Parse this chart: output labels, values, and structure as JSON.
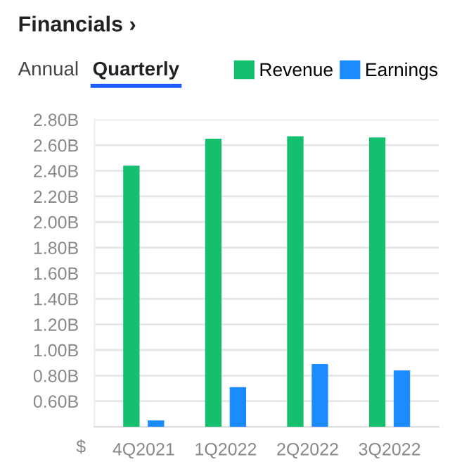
{
  "chart_data": {
    "type": "bar",
    "title": "Financials ›",
    "annotations": [
      "Annual",
      "Quarterly"
    ],
    "ylabel": "$",
    "categories": [
      "4Q2021",
      "1Q2022",
      "2Q2022",
      "3Q2022"
    ],
    "series": [
      {
        "name": "Revenue",
        "color": "#14c06e",
        "values": [
          2.44,
          2.65,
          2.67,
          2.66
        ]
      },
      {
        "name": "Earnings",
        "color": "#1a8cff",
        "values": [
          0.45,
          0.71,
          0.89,
          0.84
        ]
      }
    ],
    "ylim": [
      0.4,
      2.8
    ],
    "yticks": [
      {
        "value": 0.6,
        "label": "0.60B"
      },
      {
        "value": 0.8,
        "label": "0.80B"
      },
      {
        "value": 1.0,
        "label": "1.00B"
      },
      {
        "value": 1.2,
        "label": "1.20B"
      },
      {
        "value": 1.4,
        "label": "1.40B"
      },
      {
        "value": 1.6,
        "label": "1.60B"
      },
      {
        "value": 1.8,
        "label": "1.80B"
      },
      {
        "value": 2.0,
        "label": "2.00B"
      },
      {
        "value": 2.2,
        "label": "2.20B"
      },
      {
        "value": 2.4,
        "label": "2.40B"
      },
      {
        "value": 2.6,
        "label": "2.60B"
      },
      {
        "value": 2.8,
        "label": "2.80B"
      }
    ],
    "grid": "y",
    "legend": "top right"
  }
}
